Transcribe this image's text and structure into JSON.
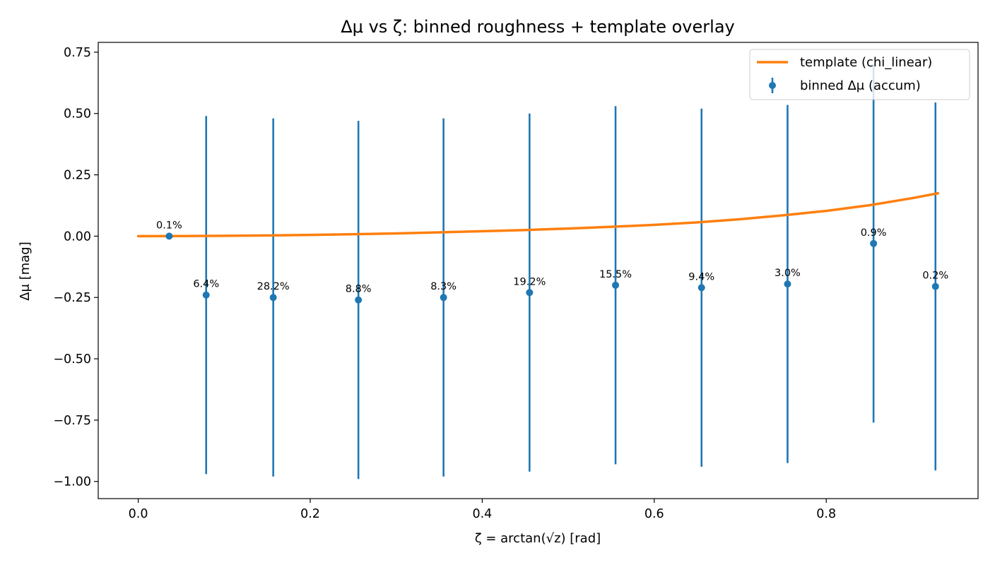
{
  "chart_data": {
    "type": "scatter",
    "title": "Δμ vs ζ: binned roughness + template overlay",
    "xlabel": "ζ = arctan(√z)  [rad]",
    "ylabel": "Δμ [mag]",
    "xlim": [
      -0.0465,
      0.9765
    ],
    "ylim": [
      -1.07,
      0.79
    ],
    "x_ticks": [
      0.0,
      0.2,
      0.4,
      0.6,
      0.8
    ],
    "x_tick_labels": [
      "0.0",
      "0.2",
      "0.4",
      "0.6",
      "0.8"
    ],
    "y_ticks": [
      0.75,
      0.5,
      0.25,
      0.0,
      -0.25,
      -0.5,
      -0.75,
      -1.0
    ],
    "y_tick_labels": [
      "0.75",
      "0.50",
      "0.25",
      "0.00",
      "−0.25",
      "−0.50",
      "−0.75",
      "−1.00"
    ],
    "legend_position": "top-right",
    "grid": false,
    "series": [
      {
        "name": "template (chi_linear)",
        "kind": "line",
        "color": "#ff7f0e",
        "x": [
          0.0,
          0.05,
          0.1,
          0.15,
          0.2,
          0.25,
          0.3,
          0.35,
          0.4,
          0.45,
          0.5,
          0.55,
          0.6,
          0.65,
          0.7,
          0.75,
          0.8,
          0.85,
          0.9,
          0.93
        ],
        "y": [
          0.0,
          0.0004,
          0.0013,
          0.0028,
          0.005,
          0.0078,
          0.0112,
          0.0155,
          0.02,
          0.025,
          0.031,
          0.038,
          0.046,
          0.056,
          0.069,
          0.085,
          0.103,
          0.126,
          0.155,
          0.175
        ]
      },
      {
        "name": "binned Δμ (accum)",
        "kind": "errorbar",
        "color": "#1f77b4",
        "x": [
          0.036,
          0.079,
          0.157,
          0.256,
          0.355,
          0.455,
          0.555,
          0.655,
          0.755,
          0.855,
          0.927
        ],
        "y": [
          0.0,
          -0.24,
          -0.25,
          -0.26,
          -0.25,
          -0.23,
          -0.2,
          -0.21,
          -0.195,
          -0.03,
          -0.205
        ],
        "yerr_low": [
          0.0,
          0.73,
          0.73,
          0.73,
          0.73,
          0.73,
          0.73,
          0.73,
          0.73,
          0.73,
          0.75
        ],
        "yerr_high": [
          0.0,
          0.73,
          0.73,
          0.73,
          0.73,
          0.73,
          0.73,
          0.73,
          0.73,
          0.73,
          0.75
        ],
        "labels": [
          "0.1%",
          "6.4%",
          "28.2%",
          "8.8%",
          "8.3%",
          "19.2%",
          "15.5%",
          "9.4%",
          "3.0%",
          "0.9%",
          "0.2%"
        ]
      }
    ]
  }
}
